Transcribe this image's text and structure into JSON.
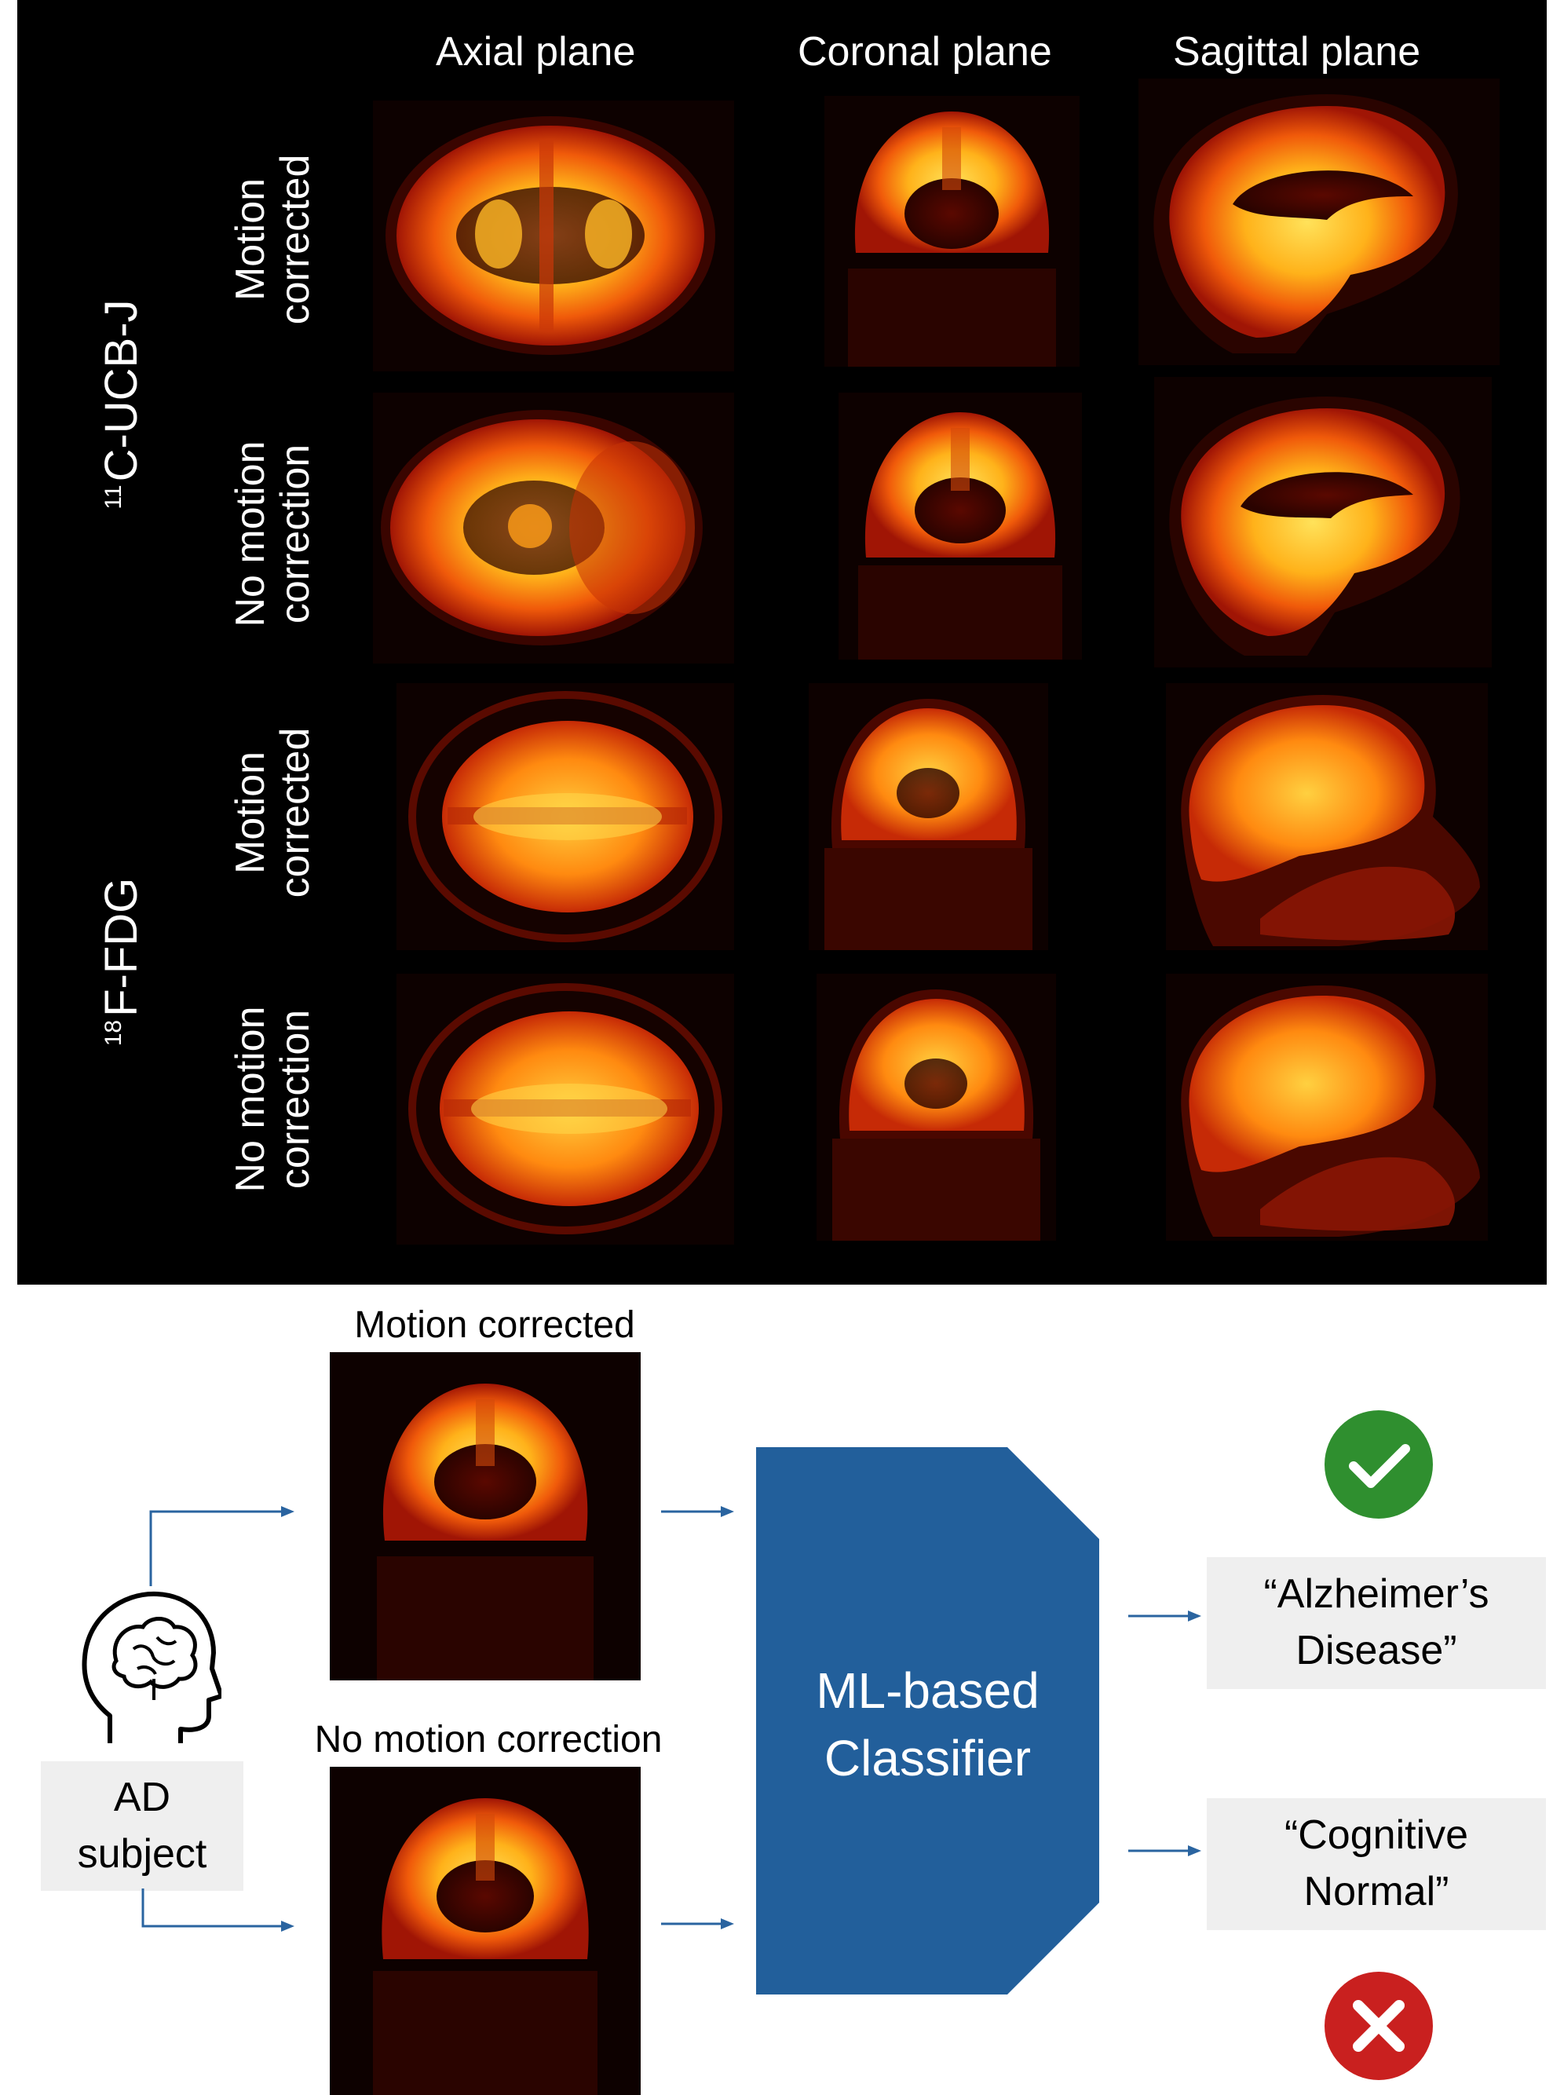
{
  "columns": [
    "Axial plane",
    "Coronal plane",
    "Sagittal plane"
  ],
  "tracers": [
    {
      "superscript": "11",
      "name": "C-UCB-J"
    },
    {
      "superscript": "18",
      "name": "F-FDG"
    }
  ],
  "rows": [
    {
      "line1": "Motion",
      "line2": "corrected"
    },
    {
      "line1": "No motion",
      "line2": "correction"
    },
    {
      "line1": "Motion",
      "line2": "corrected"
    },
    {
      "line1": "No motion",
      "line2": "correction"
    }
  ],
  "lower": {
    "top_image_label": "Motion corrected",
    "bottom_image_label": "No motion correction",
    "subject_line1": "AD",
    "subject_line2": "subject",
    "classifier_line1": "ML-based",
    "classifier_line2": "Classifier",
    "output_top_line1": "“Alzheimer’s",
    "output_top_line2": "Disease”",
    "output_bottom_line1": "“Cognitive",
    "output_bottom_line2": "Normal”"
  },
  "icons": {
    "subject": "head-brain-icon",
    "correct": "check-circle-icon",
    "wrong": "x-circle-icon"
  },
  "colors": {
    "panel": "#000000",
    "classifier": "#225f9b",
    "arrow": "#2a64a0",
    "check": "#2f8f2f",
    "cross": "#c9201f",
    "label_box": "#efefef"
  }
}
